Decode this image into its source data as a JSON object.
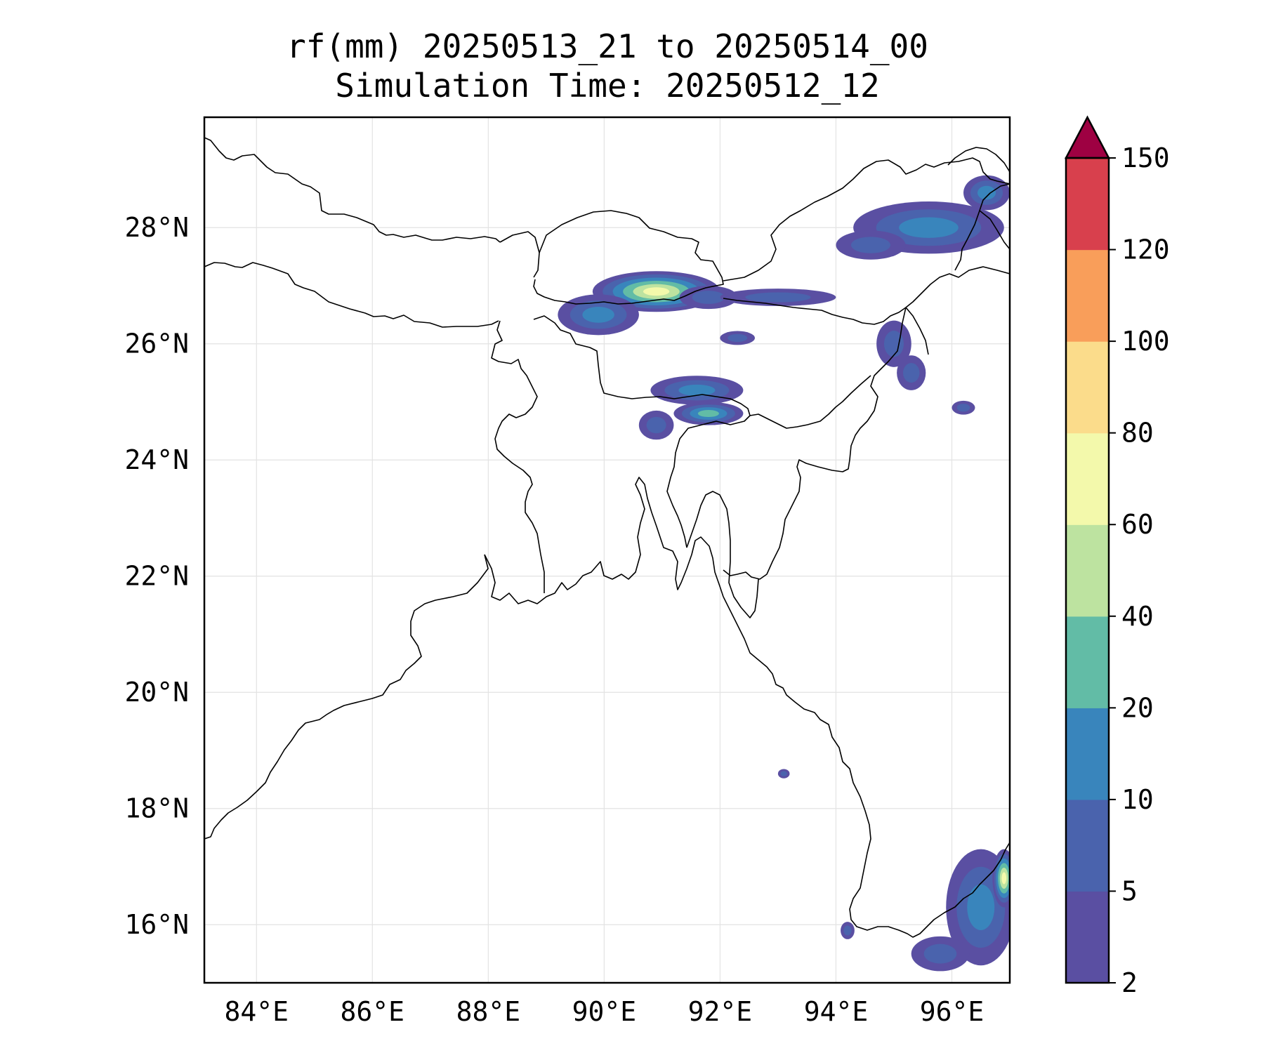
{
  "title": {
    "line1": "rf(mm) 20250513_21 to 20250514_00",
    "line2": "Simulation Time: 20250512_12"
  },
  "map": {
    "lon_range": [
      83.1,
      97.0
    ],
    "lat_range": [
      15.0,
      29.9
    ],
    "lon_ticks": [
      {
        "value": 84,
        "label": "84°E"
      },
      {
        "value": 86,
        "label": "86°E"
      },
      {
        "value": 88,
        "label": "88°E"
      },
      {
        "value": 90,
        "label": "90°E"
      },
      {
        "value": 92,
        "label": "92°E"
      },
      {
        "value": 94,
        "label": "94°E"
      },
      {
        "value": 96,
        "label": "96°E"
      }
    ],
    "lat_ticks": [
      {
        "value": 16,
        "label": "16°N"
      },
      {
        "value": 18,
        "label": "18°N"
      },
      {
        "value": 20,
        "label": "20°N"
      },
      {
        "value": 22,
        "label": "22°N"
      },
      {
        "value": 24,
        "label": "24°N"
      },
      {
        "value": 26,
        "label": "26°N"
      },
      {
        "value": 28,
        "label": "28°N"
      }
    ],
    "gridlines": true,
    "gridline_color": "#e3e3e3",
    "coastline_color": "#000000"
  },
  "colorbar": {
    "levels": [
      2,
      5,
      10,
      20,
      40,
      60,
      80,
      100,
      120,
      150
    ],
    "labels": [
      "2",
      "5",
      "10",
      "20",
      "40",
      "60",
      "80",
      "100",
      "120",
      "150"
    ],
    "colors": [
      "#5a4fa2",
      "#4a63ad",
      "#3985bc",
      "#62bca6",
      "#bde3a0",
      "#f3f9ab",
      "#fbdc8b",
      "#f99e5a",
      "#d8404d",
      "#9e0142"
    ],
    "extend": "max",
    "placement": "right"
  },
  "rain_cells": [
    {
      "lon": 90.9,
      "lat": 26.9,
      "rx": 1.1,
      "ry": 0.35,
      "peak": 60
    },
    {
      "lon": 89.9,
      "lat": 26.5,
      "rx": 0.7,
      "ry": 0.35,
      "peak": 10
    },
    {
      "lon": 91.8,
      "lat": 26.8,
      "rx": 0.5,
      "ry": 0.2,
      "peak": 5
    },
    {
      "lon": 93.0,
      "lat": 26.8,
      "rx": 1.0,
      "ry": 0.15,
      "peak": 5
    },
    {
      "lon": 91.6,
      "lat": 25.2,
      "rx": 0.8,
      "ry": 0.25,
      "peak": 10
    },
    {
      "lon": 91.8,
      "lat": 24.8,
      "rx": 0.6,
      "ry": 0.2,
      "peak": 20
    },
    {
      "lon": 90.9,
      "lat": 24.6,
      "rx": 0.3,
      "ry": 0.25,
      "peak": 5
    },
    {
      "lon": 95.6,
      "lat": 28.0,
      "rx": 1.3,
      "ry": 0.45,
      "peak": 10
    },
    {
      "lon": 94.6,
      "lat": 27.7,
      "rx": 0.6,
      "ry": 0.25,
      "peak": 5
    },
    {
      "lon": 96.6,
      "lat": 28.6,
      "rx": 0.4,
      "ry": 0.3,
      "peak": 10
    },
    {
      "lon": 95.0,
      "lat": 26.0,
      "rx": 0.3,
      "ry": 0.4,
      "peak": 5
    },
    {
      "lon": 95.3,
      "lat": 25.5,
      "rx": 0.25,
      "ry": 0.3,
      "peak": 5
    },
    {
      "lon": 96.5,
      "lat": 16.3,
      "rx": 0.6,
      "ry": 1.0,
      "peak": 10
    },
    {
      "lon": 96.9,
      "lat": 16.8,
      "rx": 0.2,
      "ry": 0.5,
      "peak": 60
    },
    {
      "lon": 95.8,
      "lat": 15.5,
      "rx": 0.5,
      "ry": 0.3,
      "peak": 5
    },
    {
      "lon": 93.1,
      "lat": 18.6,
      "rx": 0.1,
      "ry": 0.08,
      "peak": 5
    },
    {
      "lon": 92.3,
      "lat": 26.1,
      "rx": 0.3,
      "ry": 0.12,
      "peak": 5
    },
    {
      "lon": 96.2,
      "lat": 24.9,
      "rx": 0.2,
      "ry": 0.12,
      "peak": 5
    },
    {
      "lon": 94.2,
      "lat": 15.9,
      "rx": 0.12,
      "ry": 0.15,
      "peak": 5
    }
  ]
}
